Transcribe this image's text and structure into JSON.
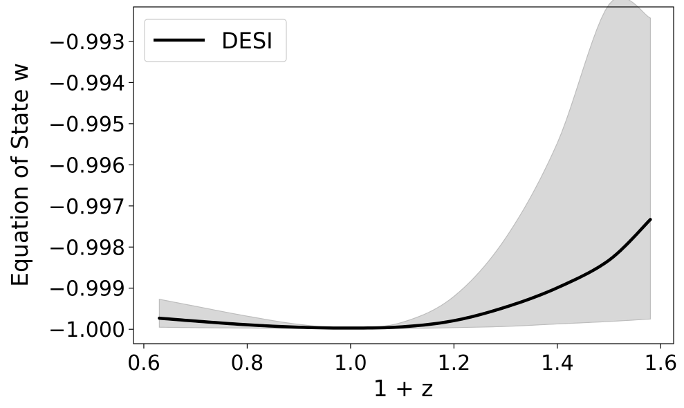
{
  "chart_data": {
    "type": "line",
    "xlabel": "1 + z",
    "ylabel": "Equation of State w",
    "xlim": [
      0.58,
      1.625
    ],
    "ylim": [
      -1.00035,
      -0.99216
    ],
    "xticks": [
      0.6,
      0.8,
      1.0,
      1.2,
      1.4,
      1.6
    ],
    "xtick_labels": [
      "0.6",
      "0.8",
      "1.0",
      "1.2",
      "1.4",
      "1.6"
    ],
    "yticks": [
      -0.993,
      -0.994,
      -0.995,
      -0.996,
      -0.997,
      -0.998,
      -0.999,
      -1.0
    ],
    "ytick_labels": [
      "−0.993",
      "−0.994",
      "−0.995",
      "−0.996",
      "−0.997",
      "−0.998",
      "−0.999",
      "−1.000"
    ],
    "grid": false,
    "legend": {
      "position": "top-left",
      "entries": [
        "DESI"
      ]
    },
    "series": [
      {
        "name": "DESI",
        "color": "#000000",
        "x": [
          0.63,
          0.7,
          0.8,
          0.9,
          1.0,
          1.1,
          1.2,
          1.3,
          1.4,
          1.5,
          1.58
        ],
        "y": [
          -0.99973,
          -0.9998,
          -0.99989,
          -0.99995,
          -0.99997,
          -0.99994,
          -0.99979,
          -0.99946,
          -0.99899,
          -0.99832,
          -0.99733
        ]
      }
    ],
    "band": {
      "color": "#d8d8d8",
      "x": [
        0.63,
        0.7,
        0.8,
        0.9,
        1.0,
        1.1,
        1.2,
        1.3,
        1.4,
        1.5,
        1.58
      ],
      "upper": [
        -0.99927,
        -0.99944,
        -0.99968,
        -0.99988,
        -0.99997,
        -0.99983,
        -0.9992,
        -0.99778,
        -0.99547,
        -0.9921,
        -0.99243
      ],
      "lower": [
        -0.99995,
        -0.99996,
        -0.99997,
        -0.99998,
        -0.99998,
        -0.99998,
        -0.99996,
        -0.99993,
        -0.99987,
        -0.99981,
        -0.99975
      ]
    }
  }
}
